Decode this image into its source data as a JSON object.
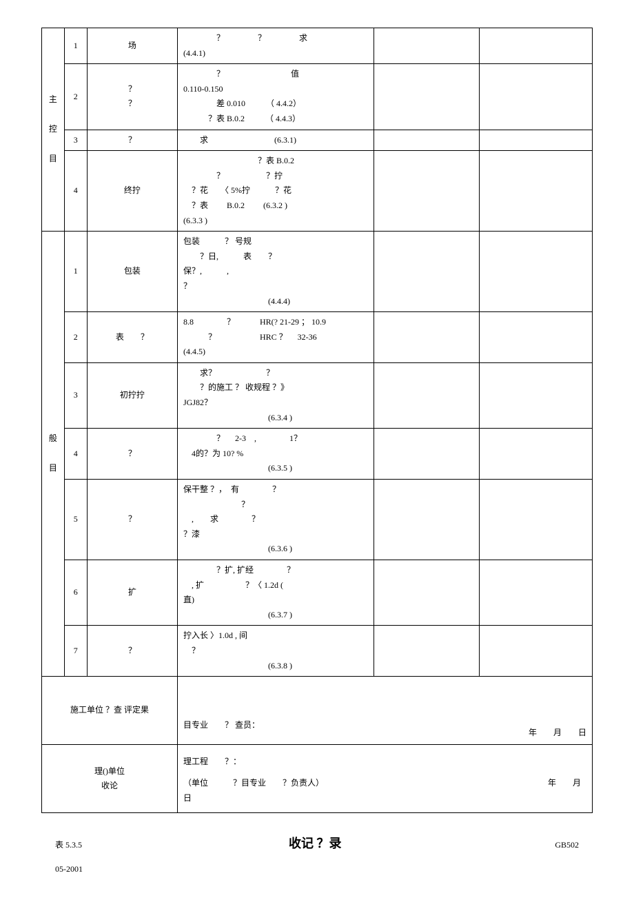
{
  "groups": {
    "a": {
      "label": "主控目"
    },
    "b": {
      "label": "般目"
    }
  },
  "rows": [
    {
      "group": "a",
      "no": "1",
      "name": "场",
      "content": "　　　　？　　　　？　　　　求\n(4.4.1)"
    },
    {
      "group": "a",
      "no": "2",
      "name": "？\n？",
      "content": "　　　　？　　　　　　　　值\n0.110-0.150\n　　　　差 0.010　　　（ 4.4.2）\n　　　？表 B.0.2　　　（ 4.4.3）"
    },
    {
      "group": "a",
      "no": "3",
      "name": "？",
      "content": "　　求　　　　　　　　(6.3.1)"
    },
    {
      "group": "a",
      "no": "4",
      "name": "终拧",
      "content": "　　　　　　　　　？表 B.0.2\n　　　　？　　　　　？拧\n　？花　　〈 5%拧　　　？花\n　？表　　 B.0.2　　 (6.3.2 )\n(6.3.3 )"
    },
    {
      "group": "b",
      "no": "1",
      "name": "包装",
      "content": "包装　　　？ 号规\n　　？日,　　　表　　？\n保？,　　　,\n？\n　　　　　　　　　　 (4.4.4)"
    },
    {
      "group": "b",
      "no": "2",
      "name": "表　　？",
      "content": "8.8　　　　？　　　HR(? 21-29 ； 10.9\n　　　？　　　　　 HRC ？　 32-36\n(4.4.5)"
    },
    {
      "group": "b",
      "no": "3",
      "name": "初拧拧",
      "content": "　　求？　　　　　　？\n　　？的施工 ？ 收规程 ？》\nJGJ82？\n　　　　　　　　　　 (6.3.4 )"
    },
    {
      "group": "b",
      "no": "4",
      "name": "？",
      "content": "　　　　？　 2-3　,　　　　1？\n　4的？为 10? %\n　　　　　　　　　　 (6.3.5 )"
    },
    {
      "group": "b",
      "no": "5",
      "name": "？",
      "content": "保干整 ？，　有　　　　？\n　　　　　　　？\n　,　　求　　　　？\n？漆\n　　　　　　　　　　 (6.3.6 )"
    },
    {
      "group": "b",
      "no": "6",
      "name": "扩",
      "content": "　　　　？扩, 扩经　　　　？\n　, 扩　　　　　？〈 1.2d (\n直)\n　　　　　　　　　　 (6.3.7 )"
    },
    {
      "group": "b",
      "no": "7",
      "name": "？",
      "content": "拧入长 〉1.0d , 间\n　？\n　　　　　　　　　　 (6.3.8 )"
    }
  ],
  "signoff1": {
    "left": "施工单位 ？查 评定果",
    "body": "目专业　　？ 查员：",
    "date": "年　　月　　日"
  },
  "signoff2": {
    "left": "理()单位\n收论",
    "line1": "理工程　　？：",
    "line2": "（单位　　　？目专业　　？负责人）",
    "line3": "日",
    "date": "年　　月"
  },
  "footer": {
    "left": "表 5.3.5",
    "center": "收记 ？录",
    "right": "GB502",
    "sub": "05-2001"
  },
  "columns": {
    "widths": [
      "30px",
      "30px",
      "120px",
      "260px",
      "140px",
      "150px"
    ]
  }
}
